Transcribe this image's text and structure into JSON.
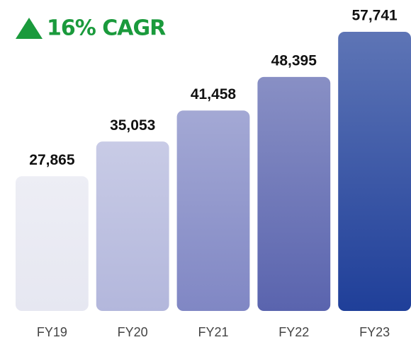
{
  "chart_data": {
    "type": "bar",
    "annotation": "16% CAGR",
    "categories": [
      "FY19",
      "FY20",
      "FY21",
      "FY22",
      "FY23"
    ],
    "values": [
      27865,
      35053,
      41458,
      48395,
      57741
    ],
    "value_labels": [
      "27,865",
      "35,053",
      "41,458",
      "48,395",
      "57,741"
    ],
    "colors": [
      "#e6e7f1",
      "#b3b7dc",
      "#8087c4",
      "#5a64ae",
      "#1f3f99"
    ],
    "grid": false
  }
}
